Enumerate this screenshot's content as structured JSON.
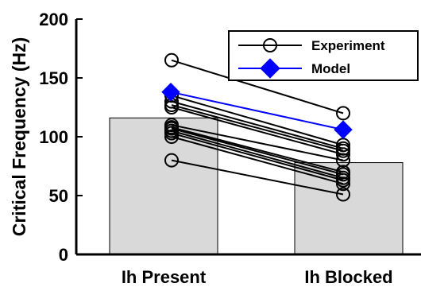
{
  "chart_data": {
    "type": "bar",
    "categories": [
      "Ih Present",
      "Ih Blocked"
    ],
    "values": [
      116,
      78
    ],
    "bar_color": "#d9d9d9",
    "ylabel": "Critical Frequency (Hz)",
    "xlabel": "",
    "ylim": [
      0,
      200
    ],
    "yticks": [
      0,
      50,
      100,
      150,
      200
    ],
    "grid": false,
    "legend": {
      "position": "top-right",
      "entries": [
        {
          "name": "Experiment",
          "color": "#000000",
          "marker": "open-circle"
        },
        {
          "name": "Model",
          "color": "#0000ff",
          "marker": "filled-diamond"
        }
      ]
    },
    "series": [
      {
        "name": "Experiment",
        "color": "#000000",
        "pairs": [
          [
            165,
            120
          ],
          [
            135,
            93
          ],
          [
            130,
            90
          ],
          [
            127,
            88
          ],
          [
            125,
            85
          ],
          [
            110,
            80
          ],
          [
            108,
            70
          ],
          [
            107,
            68
          ],
          [
            105,
            65
          ],
          [
            103,
            63
          ],
          [
            100,
            60
          ],
          [
            80,
            51
          ]
        ]
      },
      {
        "name": "Model",
        "color": "#0000ff",
        "pairs": [
          [
            138,
            106
          ]
        ]
      }
    ]
  }
}
